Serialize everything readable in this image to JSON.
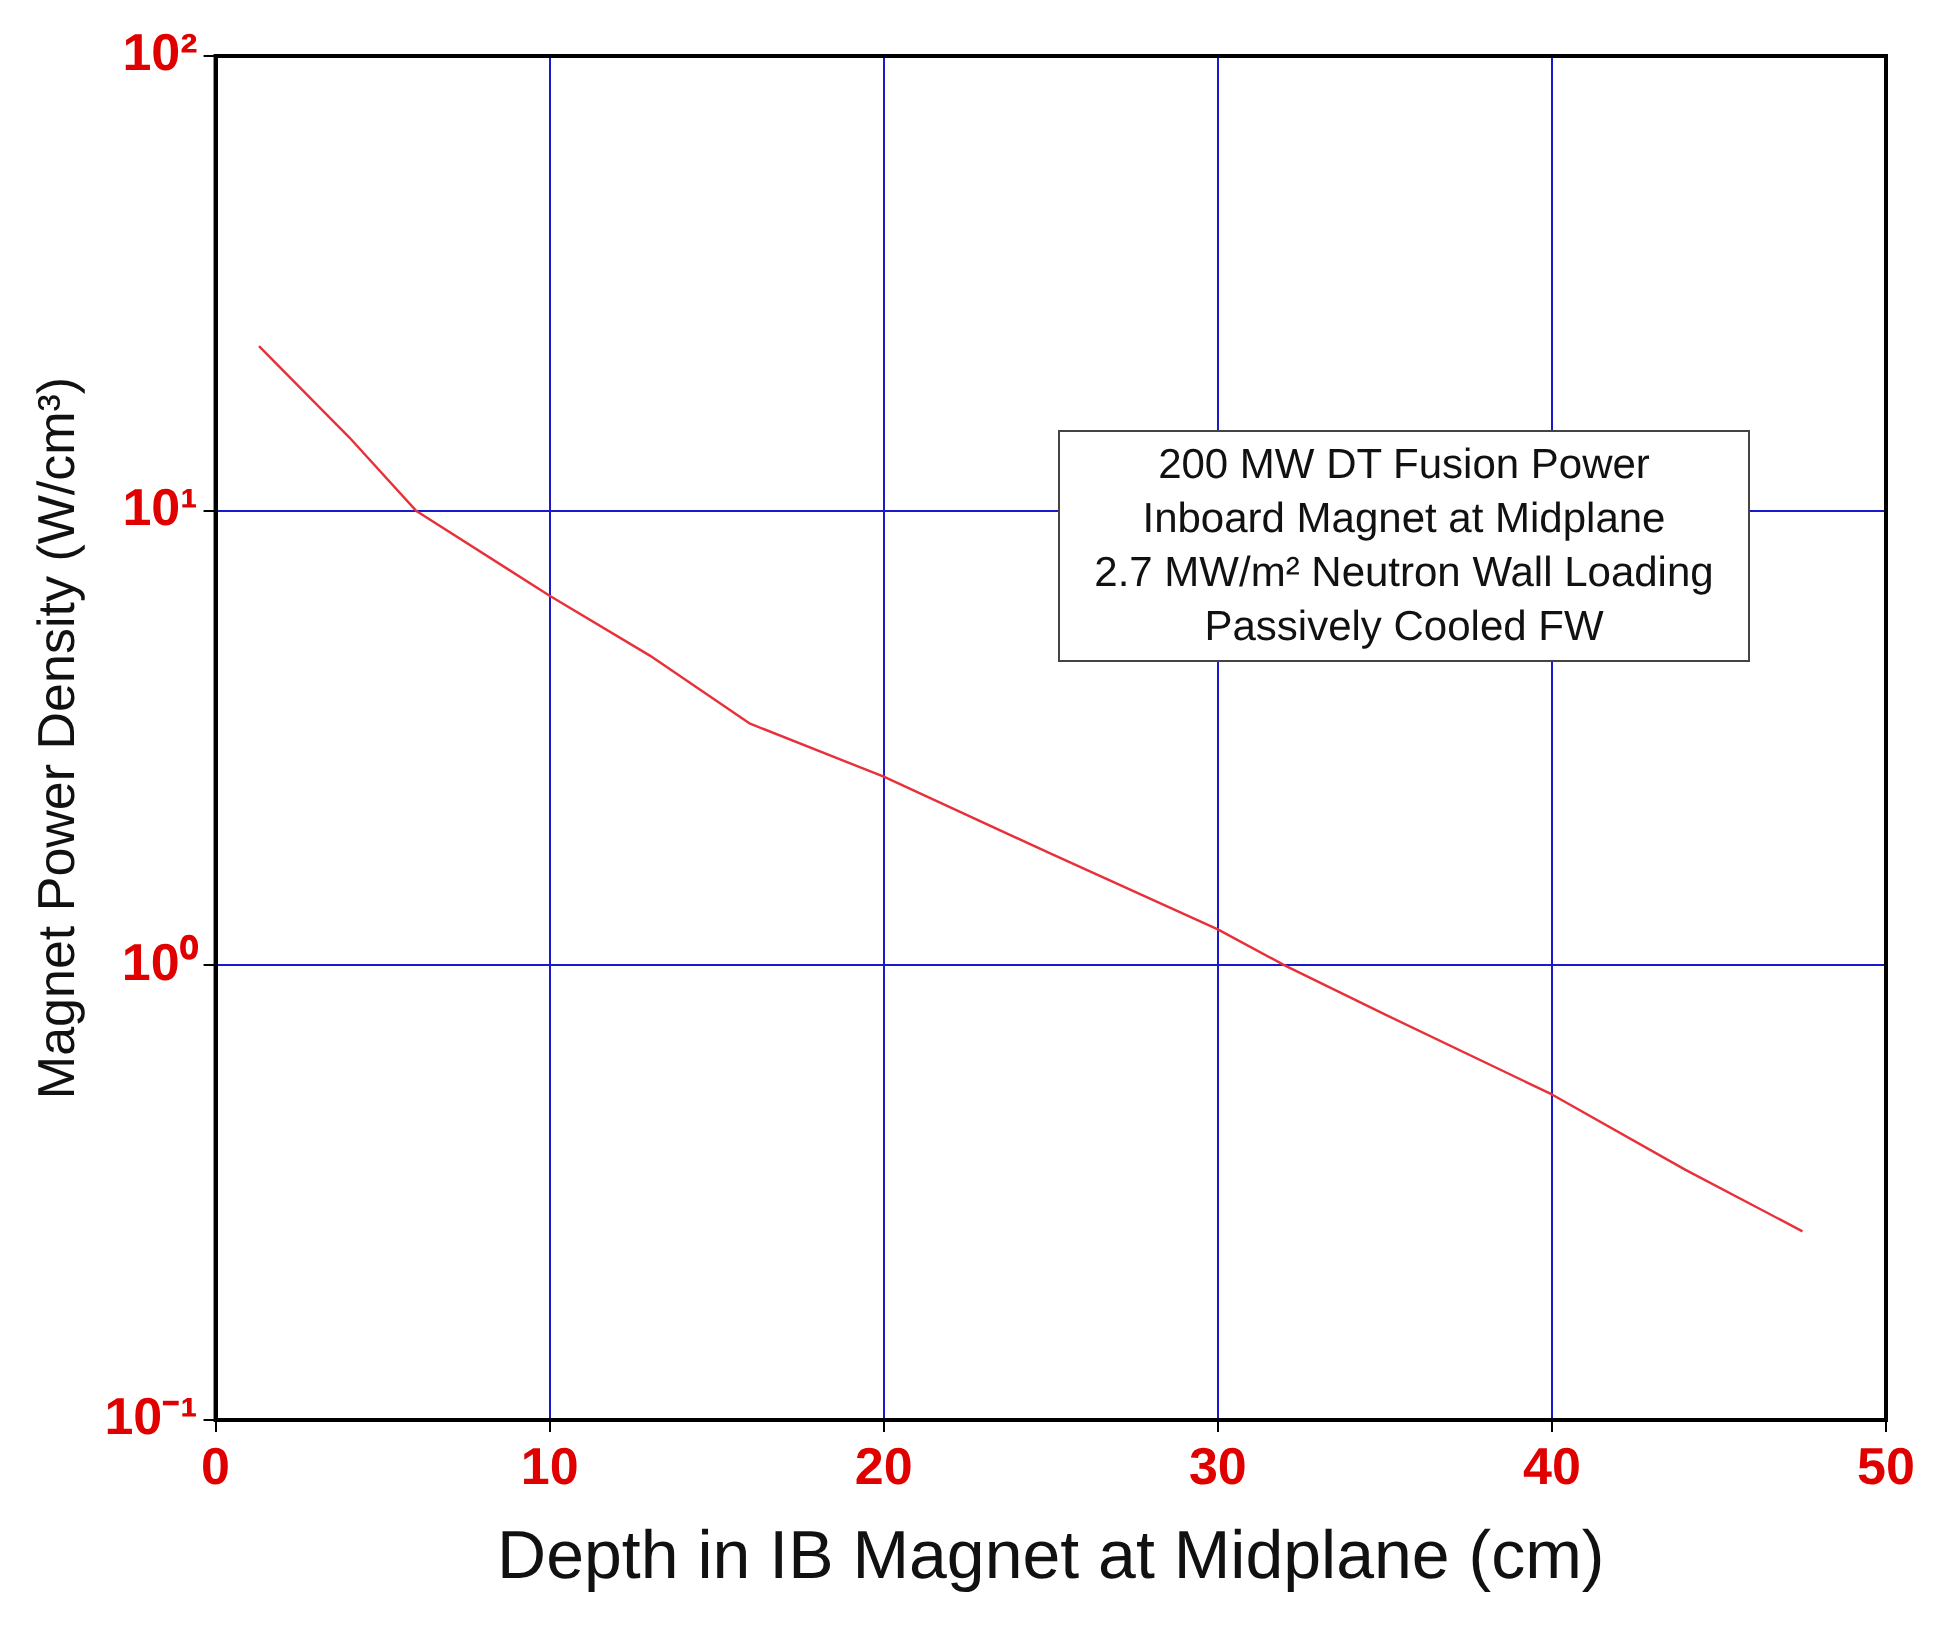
{
  "chart_data": {
    "type": "line",
    "xlabel": "Depth in IB Magnet at Midplane (cm)",
    "ylabel": "Magnet Power Density (W/cm³)",
    "x": [
      1.3,
      4,
      6,
      10,
      13,
      16,
      20,
      25,
      30,
      32,
      35,
      40,
      44,
      47.5
    ],
    "series": [
      {
        "color": "#e8303a",
        "values": [
          23,
          14.5,
          10,
          6.5,
          4.8,
          3.4,
          2.6,
          1.76,
          1.2,
          1,
          0.78,
          0.52,
          0.355,
          0.26
        ]
      }
    ],
    "xlim": [
      0,
      50
    ],
    "xticks": [
      0,
      10,
      20,
      30,
      40,
      50
    ],
    "ylim": [
      0.1,
      100
    ],
    "yticks": [
      {
        "value": 0.1,
        "label": "10⁻¹"
      },
      {
        "value": 1,
        "label": "10⁰"
      },
      {
        "value": 10,
        "label": "10¹"
      },
      {
        "value": 100,
        "label": "10²"
      }
    ],
    "log": "y",
    "grid": true,
    "legend": false,
    "marker": "none",
    "line_style": "solid",
    "annotations": [
      "200 MW DT Fusion Power",
      "Inboard Magnet at Midplane",
      "2.7 MW/m² Neutron Wall Loading",
      "Passively Cooled FW"
    ]
  }
}
